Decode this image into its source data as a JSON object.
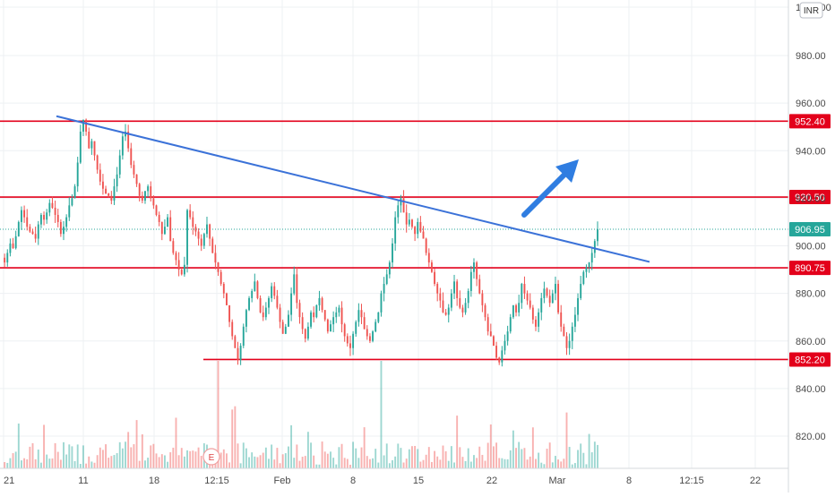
{
  "chart_data": {
    "type": "candlestick",
    "currency_badge": "INR",
    "price_axis_top_label": "1000.00",
    "y_ticks": [
      820,
      840,
      860,
      880,
      900,
      920,
      940,
      960,
      980
    ],
    "y_tick_labels": [
      "820.00",
      "840.00",
      "860.00",
      "880.00",
      "900.00",
      "920.00",
      "940.00",
      "960.00",
      "980.00"
    ],
    "x_ticks": [
      "21",
      "11",
      "18",
      "12:15",
      "Feb",
      "8",
      "15",
      "22",
      "Mar",
      "8",
      "12:15",
      "22"
    ],
    "last_price": 906.95,
    "last_price_label": "906.95",
    "horizontal_levels": [
      {
        "value": 952.4,
        "label": "952.40"
      },
      {
        "value": 920.5,
        "label": "920.50"
      },
      {
        "value": 890.75,
        "label": "890.75"
      },
      {
        "value": 852.2,
        "label": "852.20"
      }
    ],
    "trendline": {
      "from": 953,
      "to": 894,
      "description_hidden": ""
    },
    "up_color": "#26a69a",
    "down_color": "#ef5350",
    "level_color": "#e3001b",
    "trendline_color": "#3b72d8",
    "arrow_color": "#2f7de1",
    "earnings_marker": "E",
    "price_path": [
      895,
      893,
      897,
      901,
      899,
      904,
      910,
      915,
      912,
      908,
      906,
      905,
      903,
      909,
      913,
      911,
      914,
      918,
      916,
      913,
      910,
      905,
      908,
      912,
      917,
      920,
      925,
      935,
      948,
      953,
      948,
      941,
      944,
      938,
      932,
      927,
      924,
      922,
      921,
      919,
      925,
      930,
      938,
      946,
      948,
      941,
      934,
      930,
      926,
      921,
      919,
      923,
      925,
      920,
      917,
      913,
      910,
      905,
      908,
      912,
      902,
      897,
      894,
      890,
      888,
      892,
      915,
      912,
      908,
      906,
      903,
      900,
      905,
      909,
      903,
      897,
      893,
      889,
      884,
      880,
      875,
      868,
      862,
      857,
      852,
      858,
      866,
      873,
      878,
      881,
      885,
      878,
      872,
      870,
      874,
      878,
      883,
      879,
      874,
      868,
      863,
      866,
      871,
      880,
      888,
      876,
      870,
      865,
      861,
      866,
      872,
      870,
      875,
      878,
      873,
      869,
      864,
      867,
      870,
      872,
      874,
      867,
      862,
      859,
      857,
      863,
      868,
      873,
      870,
      865,
      862,
      860,
      864,
      868,
      872,
      880,
      884,
      888,
      893,
      901,
      912,
      917,
      920,
      914,
      909,
      911,
      908,
      905,
      910,
      906,
      903,
      897,
      893,
      889,
      884,
      880,
      877,
      872,
      871,
      874,
      880,
      885,
      878,
      874,
      872,
      876,
      881,
      889,
      893,
      886,
      880,
      875,
      870,
      864,
      862,
      858,
      853,
      851,
      856,
      860,
      864,
      870,
      875,
      872,
      876,
      884,
      880,
      877,
      874,
      869,
      866,
      872,
      878,
      882,
      879,
      876,
      880,
      884,
      872,
      866,
      862,
      857,
      860,
      866,
      871,
      878,
      884,
      889,
      891,
      893,
      897,
      902,
      906.95
    ]
  }
}
